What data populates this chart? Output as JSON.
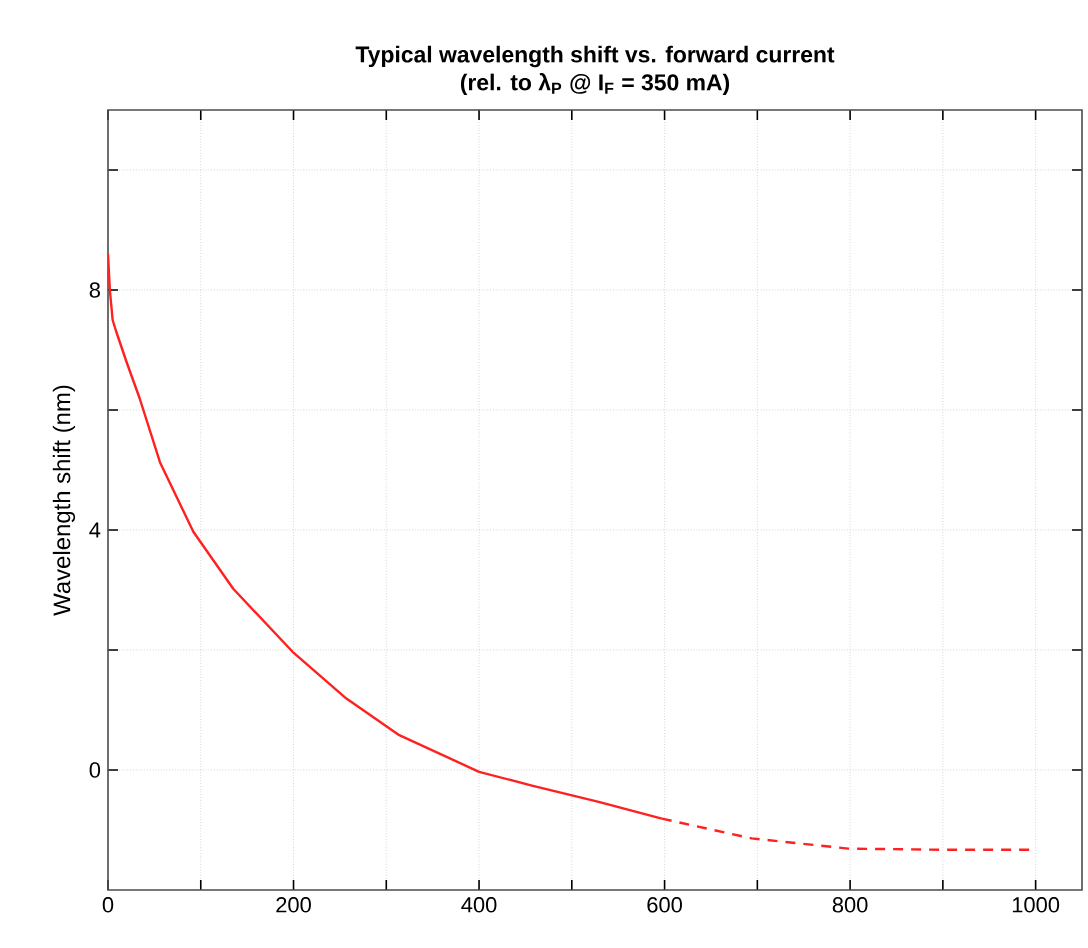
{
  "chart_data": {
    "type": "line",
    "title": "Typical wavelength shift vs. forward current",
    "subtitle": "(rel. to λ$_{P}$ @ I$_{F}$ = 350 mA)",
    "ylabel": "Wavelength shift (nm)",
    "xlim": [
      0,
      1050
    ],
    "ylim": [
      -2,
      11
    ],
    "xticks": [
      0,
      {
        "value": 100,
        "label": null
      },
      200,
      {
        "value": 300,
        "label": null
      },
      400,
      {
        "value": 500,
        "label": null
      },
      600,
      {
        "value": 700,
        "label": null
      },
      800,
      {
        "value": 900,
        "label": null
      },
      1000
    ],
    "yticks": [
      0,
      {
        "value": 2,
        "label": null
      },
      4,
      {
        "value": 6,
        "label": null
      },
      8,
      {
        "value": 10,
        "label": null
      }
    ],
    "grid": true,
    "marker": "none",
    "series": [
      {
        "color": "#ff2020",
        "line_style": "solid",
        "x": [
          0,
          2,
          5,
          9,
          20,
          34,
          56,
          92,
          135,
          199,
          257,
          314,
          400,
          457,
          529,
          597
        ],
        "values": [
          8.6,
          8.0,
          7.5,
          7.3,
          6.8,
          6.2,
          5.13,
          3.97,
          3.02,
          1.97,
          1.19,
          0.58,
          -0.03,
          -0.26,
          -0.53,
          -0.81
        ]
      },
      {
        "color": "#ff2020",
        "line_style": "dashed",
        "x": [
          597,
          694,
          798,
          902,
          998
        ],
        "values": [
          -0.81,
          -1.14,
          -1.31,
          -1.33,
          -1.33
        ]
      }
    ]
  }
}
